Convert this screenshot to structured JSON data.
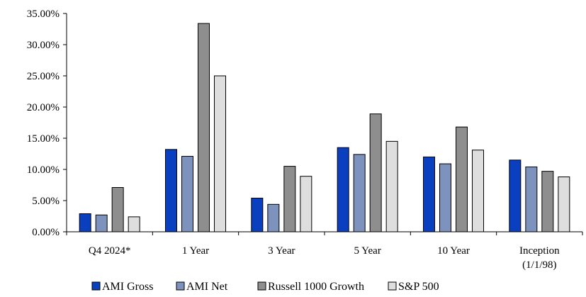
{
  "chart_data": {
    "type": "bar",
    "categories": [
      "Q4 2024*",
      "1 Year",
      "3 Year",
      "5 Year",
      "10 Year",
      "Inception\n(1/1/98)"
    ],
    "series": [
      {
        "name": "AMI Gross",
        "color": "#0a3fbf",
        "values": [
          2.9,
          13.2,
          5.4,
          13.5,
          12.0,
          11.5
        ]
      },
      {
        "name": "AMI Net",
        "color": "#7d93bd",
        "values": [
          2.7,
          12.1,
          4.4,
          12.4,
          10.9,
          10.4
        ]
      },
      {
        "name": "Russell 1000 Growth",
        "color": "#8e8e8e",
        "values": [
          7.1,
          33.4,
          10.5,
          18.9,
          16.8,
          9.7
        ]
      },
      {
        "name": "S&P 500",
        "color": "#dedede",
        "values": [
          2.4,
          25.0,
          8.9,
          14.5,
          13.1,
          8.8
        ]
      }
    ],
    "ylim": [
      0,
      35
    ],
    "y_ticks": [
      "0.00%",
      "5.00%",
      "10.00%",
      "15.00%",
      "20.00%",
      "25.00%",
      "30.00%",
      "35.00%"
    ],
    "y_tick_values": [
      0,
      5,
      10,
      15,
      20,
      25,
      30,
      35
    ],
    "grid": false,
    "legend_position": "bottom",
    "title": "",
    "xlabel": "",
    "ylabel": ""
  }
}
